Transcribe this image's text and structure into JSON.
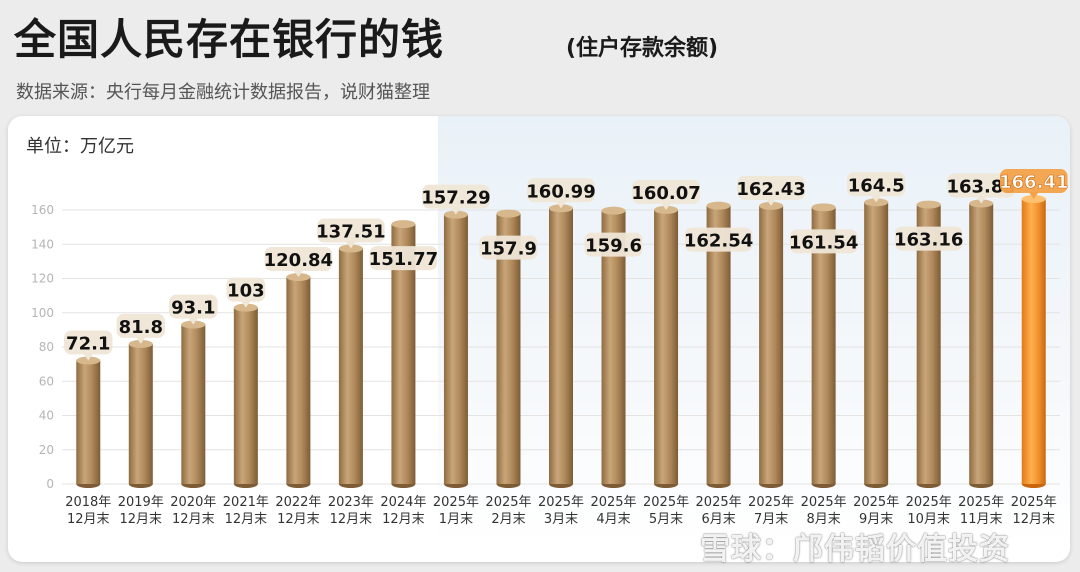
{
  "header": {
    "title": "全国人民存在银行的钱",
    "title_paren": "(住户存款余额)",
    "source": "数据来源：央行每月金融统计数据报告，说财猫整理"
  },
  "unit_label": "单位：万亿元",
  "watermark": "雪球：邝伟韬价值投资",
  "colors": {
    "bar": "#b08a5c",
    "bar_highlight": "#f0922e",
    "label_bubble": "#efe6d6",
    "highlight_panel": "#e9f1f8"
  },
  "chart_data": {
    "type": "bar",
    "title": "全国人民存在银行的钱",
    "ylabel": "单位：万亿元",
    "ylim": [
      0,
      160
    ],
    "yticks": [
      0,
      20,
      40,
      60,
      80,
      100,
      120,
      140,
      160
    ],
    "grid": true,
    "categories": [
      [
        "2018年",
        "12月末"
      ],
      [
        "2019年",
        "12月末"
      ],
      [
        "2020年",
        "12月末"
      ],
      [
        "2021年",
        "12月末"
      ],
      [
        "2022年",
        "12月末"
      ],
      [
        "2023年",
        "12月末"
      ],
      [
        "2024年",
        "12月末"
      ],
      [
        "2025年",
        "1月末"
      ],
      [
        "2025年",
        "2月末"
      ],
      [
        "2025年",
        "3月末"
      ],
      [
        "2025年",
        "4月末"
      ],
      [
        "2025年",
        "5月末"
      ],
      [
        "2025年",
        "6月末"
      ],
      [
        "2025年",
        "7月末"
      ],
      [
        "2025年",
        "8月末"
      ],
      [
        "2025年",
        "9月末"
      ],
      [
        "2025年",
        "10月末"
      ],
      [
        "2025年",
        "11月末"
      ],
      [
        "2025年",
        "12月末"
      ]
    ],
    "values": [
      72.1,
      81.8,
      93.1,
      103,
      120.84,
      137.51,
      151.77,
      157.29,
      157.9,
      160.99,
      159.6,
      160.07,
      162.54,
      162.43,
      161.54,
      164.5,
      163.16,
      163.83,
      166.41
    ],
    "value_labels": [
      "72.1",
      "81.8",
      "93.1",
      "103",
      "120.84",
      "137.51",
      "151.77",
      "157.29",
      "157.9",
      "160.99",
      "159.6",
      "160.07",
      "162.54",
      "162.43",
      "161.54",
      "164.5",
      "163.16",
      "163.83",
      "166.41"
    ],
    "label_position": [
      "above",
      "above",
      "above",
      "above",
      "above",
      "above",
      "inside",
      "above",
      "inside",
      "above",
      "inside",
      "above",
      "inside",
      "above",
      "inside",
      "above",
      "inside",
      "above",
      "above"
    ],
    "highlight_index": 18
  }
}
